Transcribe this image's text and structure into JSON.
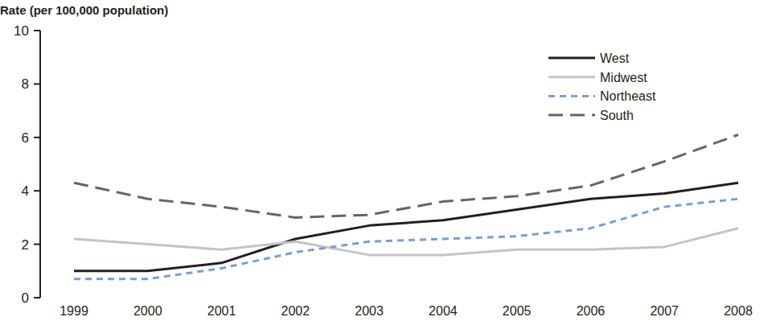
{
  "chart_data": {
    "type": "line",
    "y_label": "Rate (per 100,000 population)",
    "categories": [
      "1999",
      "2000",
      "2001",
      "2002",
      "2003",
      "2004",
      "2005",
      "2006",
      "2007",
      "2008"
    ],
    "series": [
      {
        "name": "West",
        "color": "#231f20",
        "line_style": "solid",
        "values": [
          1.0,
          1.0,
          1.3,
          2.2,
          2.7,
          2.9,
          3.3,
          3.7,
          3.9,
          4.3
        ]
      },
      {
        "name": "Midwest",
        "color": "#c4c4c4",
        "line_style": "solid",
        "values": [
          2.2,
          2.0,
          1.8,
          2.1,
          1.6,
          1.6,
          1.8,
          1.8,
          1.9,
          2.6
        ]
      },
      {
        "name": "Northeast",
        "color": "#7b9dd0",
        "line_style": "dashed",
        "values": [
          0.7,
          0.7,
          1.1,
          1.7,
          2.1,
          2.2,
          2.3,
          2.6,
          3.4,
          3.7
        ]
      },
      {
        "name": "South",
        "color": "#666666",
        "line_style": "longdash",
        "values": [
          4.3,
          3.7,
          3.4,
          3.0,
          3.1,
          3.6,
          3.8,
          4.2,
          5.1,
          6.1
        ]
      }
    ],
    "ylim": [
      0,
      10
    ],
    "yticks": [
      0,
      2,
      4,
      6,
      8,
      10
    ],
    "grid": false,
    "legend": "top-right"
  }
}
